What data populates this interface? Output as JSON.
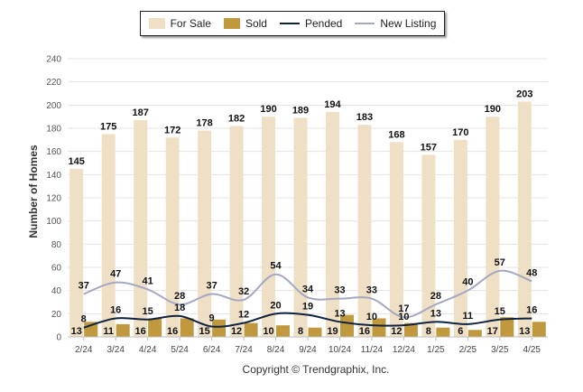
{
  "legend": {
    "items": [
      {
        "label": "For Sale",
        "kind": "bar",
        "color": "#efe0c5"
      },
      {
        "label": "Sold",
        "kind": "bar",
        "color": "#c0993f"
      },
      {
        "label": "Pended",
        "kind": "line",
        "color": "#0f2340"
      },
      {
        "label": "New Listing",
        "kind": "line",
        "color": "#a3a8c3"
      }
    ]
  },
  "footer": {
    "copyright": "Copyright © Trendgraphix, Inc."
  },
  "chart_data": {
    "type": "bar",
    "title": "",
    "xlabel": "",
    "ylabel": "Number of Homes",
    "ylim": [
      0,
      240
    ],
    "yticks": [
      0,
      20,
      40,
      60,
      80,
      100,
      120,
      140,
      160,
      180,
      200,
      220,
      240
    ],
    "grid": true,
    "legend_position": "top",
    "categories": [
      "2/24",
      "3/24",
      "4/24",
      "5/24",
      "6/24",
      "7/24",
      "8/24",
      "9/24",
      "10/24",
      "11/24",
      "12/24",
      "1/25",
      "2/25",
      "3/25",
      "4/25"
    ],
    "series": [
      {
        "name": "For Sale",
        "kind": "bar",
        "color": "#efe0c5",
        "values": [
          145,
          175,
          187,
          172,
          178,
          182,
          190,
          189,
          194,
          183,
          168,
          157,
          170,
          190,
          203
        ]
      },
      {
        "name": "Sold",
        "kind": "bar",
        "color": "#c0993f",
        "values": [
          13,
          11,
          16,
          16,
          15,
          12,
          10,
          8,
          19,
          16,
          12,
          8,
          6,
          17,
          13
        ]
      },
      {
        "name": "Pended",
        "kind": "line",
        "color": "#0f2340",
        "values": [
          8,
          16,
          15,
          18,
          9,
          12,
          20,
          19,
          13,
          10,
          10,
          13,
          11,
          15,
          16
        ]
      },
      {
        "name": "New Listing",
        "kind": "line",
        "color": "#a3a8c3",
        "values": [
          37,
          47,
          41,
          28,
          37,
          32,
          54,
          34,
          33,
          33,
          17,
          28,
          40,
          57,
          48
        ]
      }
    ]
  }
}
